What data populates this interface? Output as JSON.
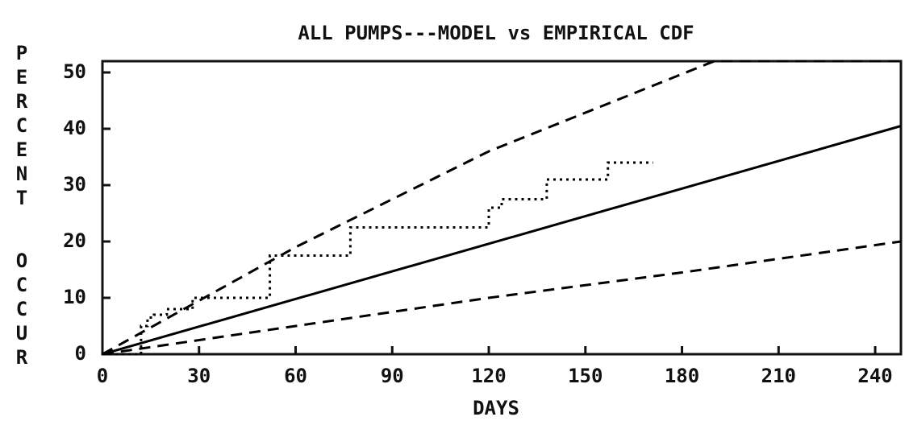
{
  "chart_data": {
    "type": "line",
    "title": "ALL PUMPS---MODEL vs EMPIRICAL CDF",
    "xlabel": "DAYS",
    "ylabel": [
      "PERCENT",
      "OCCUR"
    ],
    "xlim": [
      0,
      248
    ],
    "ylim": [
      0,
      52
    ],
    "xticks": [
      0,
      30,
      60,
      90,
      120,
      150,
      180,
      210,
      240
    ],
    "yticks": [
      0,
      10,
      20,
      30,
      40,
      50
    ],
    "grid": false,
    "series": [
      {
        "style": "solid",
        "color": "#000000",
        "x": [
          0,
          248
        ],
        "values": [
          0,
          40.5
        ]
      },
      {
        "style": "dashed",
        "color": "#000000",
        "x": [
          0,
          30,
          60,
          120,
          190,
          248
        ],
        "values": [
          0,
          9.5,
          19,
          36,
          52,
          52
        ]
      },
      {
        "style": "dashed",
        "color": "#000000",
        "x": [
          0,
          60,
          120,
          180,
          248
        ],
        "values": [
          0,
          5,
          10,
          14.5,
          20
        ]
      },
      {
        "style": "dotted",
        "color": "#000000",
        "x": [
          0,
          12,
          12,
          14,
          14,
          16,
          16,
          20,
          20,
          28,
          28,
          50,
          52,
          52,
          76,
          77,
          77,
          118,
          120,
          120,
          124,
          124,
          136,
          138,
          138,
          155,
          157,
          157,
          171
        ],
        "values": [
          0,
          0,
          5,
          5,
          6.5,
          6.5,
          7,
          7,
          8,
          8,
          10,
          10,
          10,
          17.5,
          17.5,
          17.5,
          22.5,
          22.5,
          22.5,
          26,
          26,
          27.5,
          27.5,
          27.5,
          31,
          31,
          31,
          34,
          34
        ]
      }
    ]
  }
}
